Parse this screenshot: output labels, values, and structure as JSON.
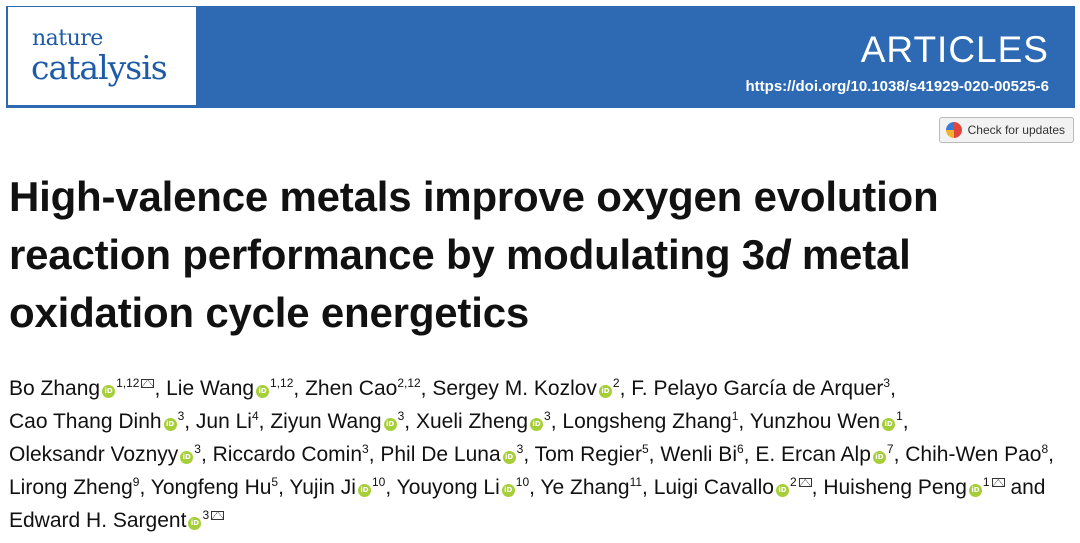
{
  "header": {
    "logo_line1": "nature",
    "logo_line2": "catalysis",
    "section": "ARTICLES",
    "doi": "https://doi.org/10.1038/s41929-020-00525-6",
    "brand_color": "#2d6ab3"
  },
  "check_updates": {
    "label": "Check for updates",
    "icon": "check-updates-icon"
  },
  "title": {
    "part1": "High-valence metals improve oxygen evolution reaction performance by modulating 3",
    "italic": "d",
    "part2": " metal oxidation cycle energetics"
  },
  "authors": [
    {
      "name": "Bo Zhang",
      "orcid": true,
      "aff": "1,12",
      "mail": true,
      "sep": ", "
    },
    {
      "name": "Lie Wang",
      "orcid": true,
      "aff": "1,12",
      "mail": false,
      "sep": ", "
    },
    {
      "name": "Zhen Cao",
      "orcid": false,
      "aff": "2,12",
      "mail": false,
      "sep": ", "
    },
    {
      "name": "Sergey M. Kozlov",
      "orcid": true,
      "aff": "2",
      "mail": false,
      "sep": ", "
    },
    {
      "name": "F. Pelayo García de Arquer",
      "orcid": false,
      "aff": "3",
      "mail": false,
      "sep": ", "
    },
    {
      "name": "Cao Thang Dinh",
      "orcid": true,
      "aff": "3",
      "mail": false,
      "sep": ", "
    },
    {
      "name": "Jun Li",
      "orcid": false,
      "aff": "4",
      "mail": false,
      "sep": ", "
    },
    {
      "name": "Ziyun Wang",
      "orcid": true,
      "aff": "3",
      "mail": false,
      "sep": ", "
    },
    {
      "name": "Xueli Zheng",
      "orcid": true,
      "aff": "3",
      "mail": false,
      "sep": ", "
    },
    {
      "name": "Longsheng Zhang",
      "orcid": false,
      "aff": "1",
      "mail": false,
      "sep": ", "
    },
    {
      "name": "Yunzhou Wen",
      "orcid": true,
      "aff": "1",
      "mail": false,
      "sep": ", "
    },
    {
      "name": "Oleksandr Voznyy",
      "orcid": true,
      "aff": "3",
      "mail": false,
      "sep": ", "
    },
    {
      "name": "Riccardo Comin",
      "orcid": false,
      "aff": "3",
      "mail": false,
      "sep": ", "
    },
    {
      "name": "Phil De Luna",
      "orcid": true,
      "aff": "3",
      "mail": false,
      "sep": ", "
    },
    {
      "name": "Tom Regier",
      "orcid": false,
      "aff": "5",
      "mail": false,
      "sep": ", "
    },
    {
      "name": "Wenli Bi",
      "orcid": false,
      "aff": "6",
      "mail": false,
      "sep": ", "
    },
    {
      "name": "E. Ercan Alp",
      "orcid": true,
      "aff": "7",
      "mail": false,
      "sep": ", "
    },
    {
      "name": "Chih-Wen Pao",
      "orcid": false,
      "aff": "8",
      "mail": false,
      "sep": ", "
    },
    {
      "name": "Lirong Zheng",
      "orcid": false,
      "aff": "9",
      "mail": false,
      "sep": ", "
    },
    {
      "name": "Yongfeng Hu",
      "orcid": false,
      "aff": "5",
      "mail": false,
      "sep": ", "
    },
    {
      "name": "Yujin Ji",
      "orcid": true,
      "aff": "10",
      "mail": false,
      "sep": ", "
    },
    {
      "name": "Youyong Li",
      "orcid": true,
      "aff": "10",
      "mail": false,
      "sep": ", "
    },
    {
      "name": "Ye Zhang",
      "orcid": false,
      "aff": "11",
      "mail": false,
      "sep": ", "
    },
    {
      "name": "Luigi Cavallo",
      "orcid": true,
      "aff": "2",
      "mail": true,
      "sep": ", "
    },
    {
      "name": "Huisheng Peng",
      "orcid": true,
      "aff": "1",
      "mail": true,
      "sep": " and "
    },
    {
      "name": "Edward H. Sargent",
      "orcid": true,
      "aff": "3",
      "mail": true,
      "sep": ""
    }
  ]
}
